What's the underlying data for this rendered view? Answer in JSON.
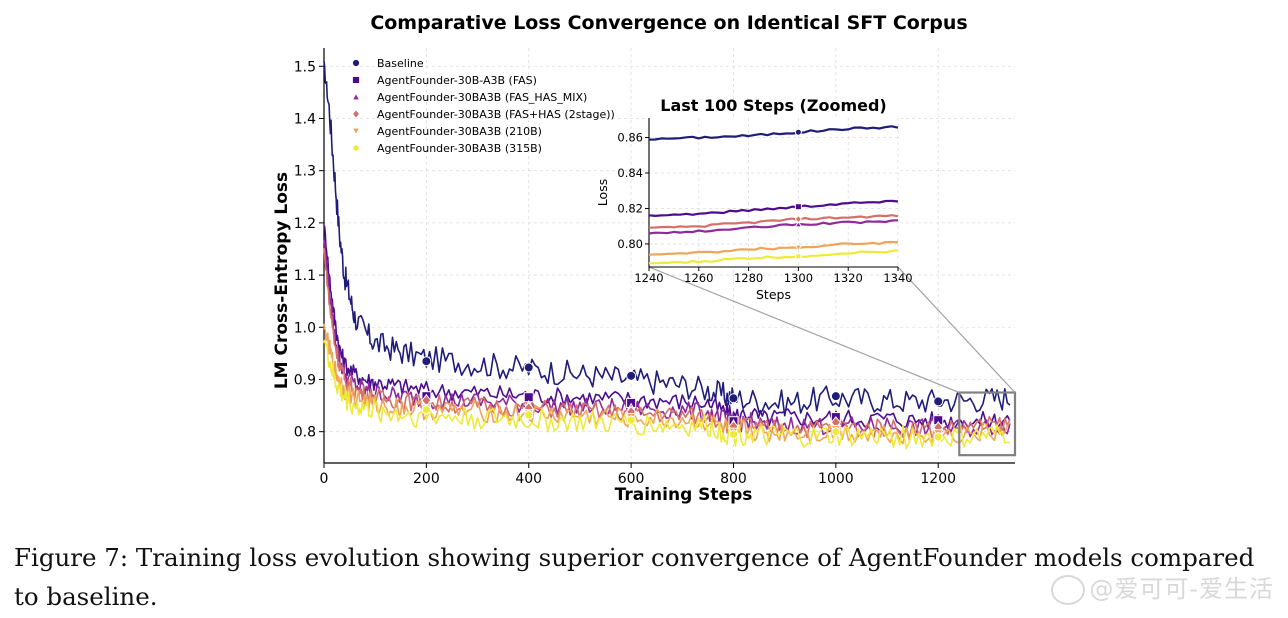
{
  "figure": {
    "caption": "Figure 7: Training loss evolution showing superior convergence of AgentFounder models compared to baseline.",
    "watermark": "@爱可可-爱生活"
  },
  "chart_data": [
    {
      "type": "line",
      "title": "Comparative Loss Convergence on Identical SFT Corpus",
      "xlabel": "Training Steps",
      "ylabel": "LM Cross-Entropy Loss",
      "xlim": [
        0,
        1350
      ],
      "ylim": [
        0.74,
        1.535
      ],
      "xticks": [
        0,
        200,
        400,
        600,
        800,
        1000,
        1200
      ],
      "yticks": [
        0.8,
        0.9,
        1.0,
        1.1,
        1.2,
        1.3,
        1.4,
        1.5
      ],
      "grid": true,
      "legend_position": "top-left",
      "zoom_box": {
        "x": [
          1245,
          1350
        ],
        "y": [
          0.755,
          0.875
        ]
      },
      "series": [
        {
          "name": "Baseline",
          "color": "#1f1c7a",
          "marker": "circle",
          "x": [
            0,
            10,
            20,
            30,
            40,
            50,
            60,
            80,
            100,
            130,
            160,
            200,
            250,
            300,
            350,
            400,
            450,
            500,
            550,
            600,
            650,
            700,
            750,
            780,
            800,
            850,
            900,
            950,
            1000,
            1050,
            1100,
            1150,
            1200,
            1250,
            1300,
            1340
          ],
          "y": [
            1.5,
            1.42,
            1.3,
            1.18,
            1.1,
            1.06,
            1.02,
            0.99,
            0.97,
            0.96,
            0.95,
            0.94,
            0.935,
            0.93,
            0.925,
            0.92,
            0.915,
            0.91,
            0.905,
            0.9,
            0.895,
            0.89,
            0.88,
            0.87,
            0.865,
            0.86,
            0.855,
            0.86,
            0.865,
            0.862,
            0.86,
            0.858,
            0.86,
            0.86,
            0.863,
            0.866
          ],
          "markers": {
            "x": [
              200,
              400,
              600,
              800,
              1000,
              1200
            ],
            "y": [
              0.935,
              0.923,
              0.907,
              0.864,
              0.868,
              0.858
            ]
          }
        },
        {
          "name": "AgentFounder-30B-A3B (FAS)",
          "color": "#4b0c8f",
          "marker": "square",
          "x": [
            0,
            10,
            20,
            30,
            40,
            60,
            80,
            100,
            130,
            160,
            200,
            250,
            300,
            350,
            400,
            450,
            500,
            550,
            600,
            650,
            700,
            750,
            780,
            800,
            830,
            860,
            900,
            950,
            1000,
            1050,
            1100,
            1150,
            1200,
            1250,
            1300,
            1340
          ],
          "y": [
            1.2,
            1.1,
            1.02,
            0.96,
            0.93,
            0.91,
            0.9,
            0.895,
            0.89,
            0.885,
            0.88,
            0.877,
            0.875,
            0.872,
            0.87,
            0.868,
            0.866,
            0.864,
            0.862,
            0.86,
            0.858,
            0.855,
            0.84,
            0.83,
            0.835,
            0.825,
            0.83,
            0.826,
            0.828,
            0.825,
            0.826,
            0.822,
            0.822,
            0.82,
            0.821,
            0.825
          ],
          "markers": {
            "x": [
              200,
              400,
              600,
              800,
              1000,
              1200
            ],
            "y": [
              0.868,
              0.866,
              0.855,
              0.82,
              0.828,
              0.822
            ]
          }
        },
        {
          "name": "AgentFounder-30BA3B (FAS_HAS_MIX)",
          "color": "#8e2a9c",
          "marker": "triangle-up",
          "x": [
            0,
            10,
            20,
            30,
            40,
            60,
            80,
            100,
            130,
            160,
            200,
            250,
            300,
            350,
            400,
            450,
            500,
            550,
            600,
            650,
            700,
            750,
            780,
            800,
            830,
            860,
            900,
            950,
            1000,
            1050,
            1100,
            1150,
            1200,
            1250,
            1300,
            1340
          ],
          "y": [
            1.17,
            1.07,
            0.99,
            0.94,
            0.91,
            0.89,
            0.88,
            0.875,
            0.87,
            0.866,
            0.862,
            0.86,
            0.858,
            0.855,
            0.852,
            0.85,
            0.848,
            0.846,
            0.845,
            0.843,
            0.84,
            0.838,
            0.825,
            0.815,
            0.82,
            0.81,
            0.815,
            0.81,
            0.813,
            0.81,
            0.812,
            0.808,
            0.808,
            0.806,
            0.809,
            0.813
          ],
          "markers": {
            "x": [
              200,
              400,
              600,
              800,
              1000,
              1200
            ],
            "y": [
              0.862,
              0.85,
              0.845,
              0.814,
              0.815,
              0.81
            ]
          }
        },
        {
          "name": "AgentFounder-30BA3B (FAS+HAS (2stage))",
          "color": "#d4706a",
          "marker": "diamond",
          "x": [
            0,
            10,
            20,
            30,
            40,
            60,
            80,
            100,
            130,
            160,
            200,
            250,
            300,
            350,
            400,
            450,
            500,
            550,
            600,
            650,
            700,
            750,
            780,
            800,
            830,
            860,
            900,
            950,
            1000,
            1050,
            1100,
            1150,
            1200,
            1250,
            1300,
            1340
          ],
          "y": [
            1.15,
            1.05,
            0.975,
            0.93,
            0.9,
            0.88,
            0.872,
            0.866,
            0.862,
            0.858,
            0.855,
            0.852,
            0.85,
            0.848,
            0.845,
            0.843,
            0.84,
            0.838,
            0.836,
            0.834,
            0.832,
            0.83,
            0.818,
            0.81,
            0.815,
            0.805,
            0.81,
            0.806,
            0.81,
            0.806,
            0.808,
            0.805,
            0.806,
            0.807,
            0.812,
            0.815
          ],
          "markers": {
            "x": [
              200,
              400,
              600,
              800,
              1000,
              1200
            ],
            "y": [
              0.86,
              0.845,
              0.838,
              0.81,
              0.818,
              0.808
            ]
          }
        },
        {
          "name": "AgentFounder-30BA3B (210B)",
          "color": "#f0a45a",
          "marker": "triangle-down",
          "x": [
            0,
            10,
            20,
            30,
            40,
            60,
            80,
            100,
            130,
            160,
            200,
            250,
            300,
            350,
            400,
            450,
            500,
            550,
            600,
            650,
            700,
            750,
            780,
            800,
            830,
            860,
            900,
            950,
            1000,
            1050,
            1100,
            1150,
            1200,
            1250,
            1300,
            1340
          ],
          "y": [
            1.0,
            0.96,
            0.92,
            0.9,
            0.88,
            0.865,
            0.858,
            0.852,
            0.848,
            0.845,
            0.842,
            0.84,
            0.838,
            0.836,
            0.834,
            0.832,
            0.83,
            0.828,
            0.826,
            0.824,
            0.822,
            0.82,
            0.808,
            0.8,
            0.805,
            0.795,
            0.8,
            0.796,
            0.8,
            0.797,
            0.799,
            0.796,
            0.796,
            0.795,
            0.798,
            0.8
          ],
          "markers": {
            "x": [
              200,
              400,
              600,
              800,
              1000,
              1200
            ],
            "y": [
              0.845,
              0.835,
              0.828,
              0.8,
              0.805,
              0.797
            ]
          }
        },
        {
          "name": "AgentFounder-30BA3B (315B)",
          "color": "#eeea3a",
          "marker": "hexagon",
          "x": [
            0,
            10,
            20,
            30,
            40,
            60,
            80,
            100,
            130,
            160,
            200,
            250,
            300,
            350,
            400,
            450,
            500,
            550,
            600,
            650,
            700,
            750,
            780,
            800,
            830,
            860,
            900,
            950,
            1000,
            1050,
            1100,
            1150,
            1200,
            1250,
            1300,
            1340
          ],
          "y": [
            0.98,
            0.94,
            0.9,
            0.88,
            0.865,
            0.85,
            0.845,
            0.84,
            0.835,
            0.832,
            0.83,
            0.828,
            0.826,
            0.824,
            0.822,
            0.82,
            0.818,
            0.816,
            0.815,
            0.813,
            0.811,
            0.81,
            0.8,
            0.793,
            0.798,
            0.788,
            0.792,
            0.789,
            0.792,
            0.79,
            0.792,
            0.789,
            0.789,
            0.789,
            0.792,
            0.795
          ],
          "markers": {
            "x": [
              200,
              400,
              600,
              800,
              1000,
              1200
            ],
            "y": [
              0.842,
              0.832,
              0.822,
              0.795,
              0.8,
              0.79
            ]
          }
        }
      ]
    },
    {
      "type": "line",
      "title": "Last 100 Steps (Zoomed)",
      "xlabel": "Steps",
      "ylabel": "Loss",
      "xlim": [
        1240,
        1340
      ],
      "ylim": [
        0.787,
        0.871
      ],
      "xticks": [
        1240,
        1260,
        1280,
        1300,
        1320,
        1340
      ],
      "yticks": [
        0.8,
        0.82,
        0.84,
        0.86
      ],
      "grid": true,
      "series": [
        {
          "name": "Baseline",
          "color": "#1f1c7a",
          "x": [
            1240,
            1260,
            1280,
            1300,
            1320,
            1340
          ],
          "y": [
            0.859,
            0.86,
            0.861,
            0.863,
            0.865,
            0.866
          ],
          "markers": {
            "x": [
              1300
            ],
            "y": [
              0.863
            ]
          }
        },
        {
          "name": "AgentFounder-30B-A3B (FAS)",
          "color": "#4b0c8f",
          "x": [
            1240,
            1260,
            1280,
            1300,
            1320,
            1340
          ],
          "y": [
            0.816,
            0.817,
            0.819,
            0.821,
            0.823,
            0.824
          ],
          "markers": {
            "x": [
              1300
            ],
            "y": [
              0.821
            ]
          }
        },
        {
          "name": "AgentFounder-30BA3B (FAS_HAS_MIX)",
          "color": "#8e2a9c",
          "x": [
            1240,
            1260,
            1280,
            1300,
            1320,
            1340
          ],
          "y": [
            0.806,
            0.807,
            0.809,
            0.811,
            0.812,
            0.813
          ],
          "markers": {
            "x": [
              1300
            ],
            "y": [
              0.811
            ]
          }
        },
        {
          "name": "AgentFounder-30BA3B (FAS+HAS (2stage))",
          "color": "#d4706a",
          "x": [
            1240,
            1260,
            1280,
            1300,
            1320,
            1340
          ],
          "y": [
            0.809,
            0.81,
            0.812,
            0.814,
            0.815,
            0.816
          ],
          "markers": {
            "x": [
              1300
            ],
            "y": [
              0.814
            ]
          }
        },
        {
          "name": "AgentFounder-30BA3B (210B)",
          "color": "#f0a45a",
          "x": [
            1240,
            1260,
            1280,
            1300,
            1320,
            1340
          ],
          "y": [
            0.794,
            0.795,
            0.797,
            0.798,
            0.8,
            0.801
          ],
          "markers": {
            "x": [
              1300
            ],
            "y": [
              0.798
            ]
          }
        },
        {
          "name": "AgentFounder-30BA3B (315B)",
          "color": "#eeea3a",
          "x": [
            1240,
            1260,
            1280,
            1300,
            1320,
            1340
          ],
          "y": [
            0.789,
            0.79,
            0.792,
            0.793,
            0.795,
            0.796
          ],
          "markers": {
            "x": [
              1300
            ],
            "y": [
              0.793
            ]
          }
        }
      ]
    }
  ]
}
